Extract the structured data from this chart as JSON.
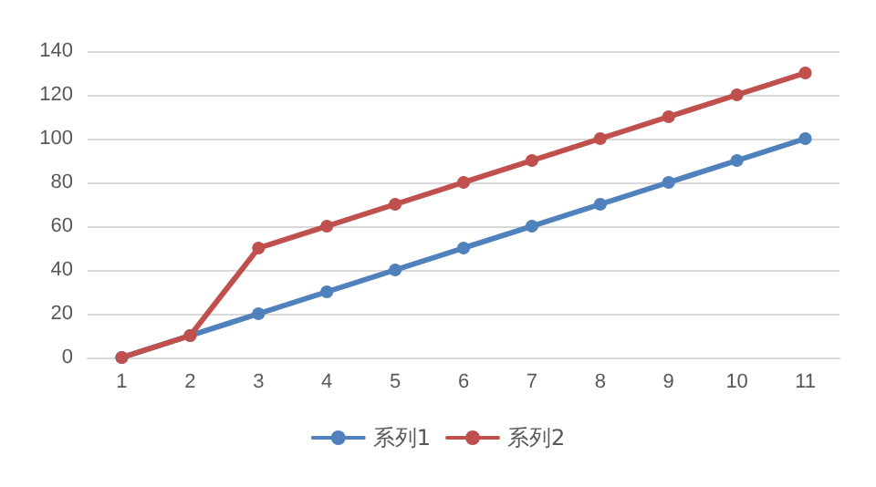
{
  "chart_data": {
    "type": "line",
    "categories": [
      "1",
      "2",
      "3",
      "4",
      "5",
      "6",
      "7",
      "8",
      "9",
      "10",
      "11"
    ],
    "series": [
      {
        "name": "系列1",
        "color": "#4f81bd",
        "values": [
          0,
          10,
          20,
          30,
          40,
          50,
          60,
          70,
          80,
          90,
          100
        ]
      },
      {
        "name": "系列2",
        "color": "#c0504d",
        "values": [
          0,
          10,
          50,
          60,
          70,
          80,
          90,
          100,
          110,
          120,
          130
        ]
      }
    ],
    "ylim": [
      0,
      140
    ],
    "yticks": [
      0,
      20,
      40,
      60,
      80,
      100,
      120,
      140
    ],
    "grid": "y",
    "legend": "bottom",
    "marker": "circle",
    "line_style": "solid"
  }
}
